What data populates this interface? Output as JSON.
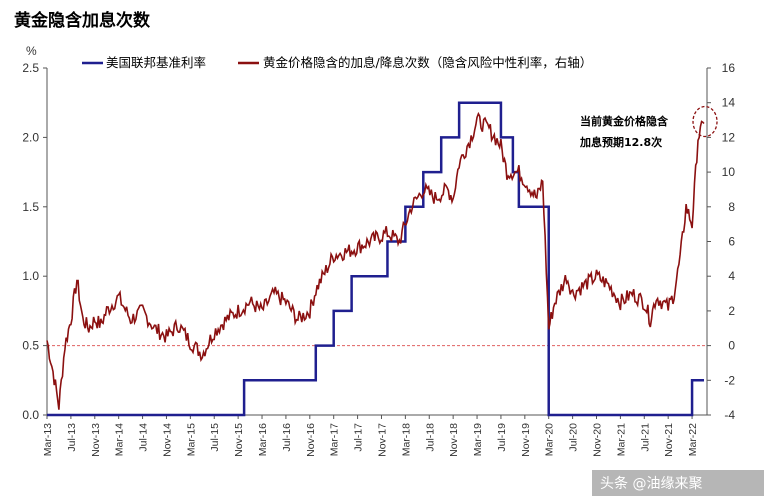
{
  "title": "黄金隐含加息次数",
  "watermark": "头条 @油缘来聚",
  "colors": {
    "fed_rate": "#1f1f8f",
    "gold_hikes": "#8b1010",
    "zero_line": "#e06060"
  },
  "chart_data": {
    "type": "line",
    "x": [
      "Mar-13",
      "Jul-13",
      "Nov-13",
      "Mar-14",
      "Jul-14",
      "Nov-14",
      "Mar-15",
      "Jul-15",
      "Nov-15",
      "Mar-16",
      "Jul-16",
      "Nov-16",
      "Mar-17",
      "Jul-17",
      "Nov-17",
      "Mar-18",
      "Jul-18",
      "Nov-18",
      "Mar-19",
      "Jul-19",
      "Nov-19",
      "Mar-20",
      "Jul-20",
      "Nov-20",
      "Mar-21",
      "Jul-21",
      "Nov-21",
      "Mar-22"
    ],
    "y_left": {
      "unit": "%",
      "ylim": [
        0,
        2.5
      ],
      "ticks": [
        "0.0",
        "0.5",
        "1.0",
        "1.5",
        "2.0",
        "2.5"
      ]
    },
    "y_right": {
      "ylim": [
        -4,
        16
      ],
      "ticks": [
        "-4",
        "-2",
        "0",
        "2",
        "4",
        "6",
        "8",
        "10",
        "12",
        "14",
        "16"
      ]
    },
    "zero_line_right": 0,
    "series": [
      {
        "name": "美国联邦基准利率",
        "axis": "left",
        "step": true,
        "points": [
          [
            "2013-03",
            0.0
          ],
          [
            "2015-12",
            0.25
          ],
          [
            "2016-12",
            0.5
          ],
          [
            "2017-03",
            0.75
          ],
          [
            "2017-06",
            1.0
          ],
          [
            "2017-12",
            1.25
          ],
          [
            "2018-03",
            1.5
          ],
          [
            "2018-06",
            1.75
          ],
          [
            "2018-09",
            2.0
          ],
          [
            "2018-12",
            2.25
          ],
          [
            "2019-07",
            2.0
          ],
          [
            "2019-09",
            1.75
          ],
          [
            "2019-10",
            1.5
          ],
          [
            "2020-03",
            0.0
          ],
          [
            "2022-03",
            0.25
          ],
          [
            "2022-05",
            0.25
          ]
        ]
      },
      {
        "name": "黄金价格隐含的加息/降息次数（隐含风险中性利率，右轴）",
        "axis": "right",
        "points": [
          [
            "2013-03",
            0.3
          ],
          [
            "2013-04",
            -1.5
          ],
          [
            "2013-05",
            -3.5
          ],
          [
            "2013-06",
            0.0
          ],
          [
            "2013-07",
            1.5
          ],
          [
            "2013-08",
            3.8
          ],
          [
            "2013-09",
            1.5
          ],
          [
            "2013-10",
            1.0
          ],
          [
            "2013-11",
            1.5
          ],
          [
            "2013-12",
            1.2
          ],
          [
            "2014-01",
            2.0
          ],
          [
            "2014-03",
            2.8
          ],
          [
            "2014-05",
            1.5
          ],
          [
            "2014-07",
            2.0
          ],
          [
            "2014-09",
            1.0
          ],
          [
            "2014-11",
            0.5
          ],
          [
            "2015-01",
            1.2
          ],
          [
            "2015-03",
            0.2
          ],
          [
            "2015-05",
            -0.5
          ],
          [
            "2015-07",
            0.8
          ],
          [
            "2015-09",
            1.5
          ],
          [
            "2015-11",
            2.0
          ],
          [
            "2016-01",
            2.5
          ],
          [
            "2016-03",
            2.0
          ],
          [
            "2016-05",
            3.0
          ],
          [
            "2016-07",
            2.5
          ],
          [
            "2016-09",
            1.5
          ],
          [
            "2016-11",
            2.0
          ],
          [
            "2016-12",
            3.2
          ],
          [
            "2017-03",
            5.2
          ],
          [
            "2017-06",
            5.5
          ],
          [
            "2017-09",
            6.0
          ],
          [
            "2017-12",
            6.5
          ],
          [
            "2018-02",
            6.0
          ],
          [
            "2018-04",
            8.0
          ],
          [
            "2018-06",
            9.0
          ],
          [
            "2018-08",
            8.5
          ],
          [
            "2018-10",
            9.0
          ],
          [
            "2018-11",
            8.5
          ],
          [
            "2018-12",
            10.5
          ],
          [
            "2019-02",
            12.0
          ],
          [
            "2019-03",
            13.0
          ],
          [
            "2019-05",
            12.5
          ],
          [
            "2019-07",
            11.5
          ],
          [
            "2019-08",
            10.0
          ],
          [
            "2019-10",
            10.0
          ],
          [
            "2019-12",
            9.0
          ],
          [
            "2020-01",
            8.5
          ],
          [
            "2020-02",
            9.5
          ],
          [
            "2020-03",
            1.0
          ],
          [
            "2020-04",
            2.5
          ],
          [
            "2020-06",
            4.0
          ],
          [
            "2020-07",
            3.0
          ],
          [
            "2020-09",
            3.5
          ],
          [
            "2020-11",
            4.0
          ],
          [
            "2021-01",
            3.5
          ],
          [
            "2021-03",
            2.5
          ],
          [
            "2021-05",
            3.0
          ],
          [
            "2021-07",
            2.5
          ],
          [
            "2021-08",
            1.5
          ],
          [
            "2021-09",
            2.8
          ],
          [
            "2021-11",
            2.2
          ],
          [
            "2021-12",
            3.0
          ],
          [
            "2022-01",
            5.0
          ],
          [
            "2022-02",
            8.0
          ],
          [
            "2022-03",
            7.0
          ],
          [
            "2022-04",
            12.0
          ],
          [
            "2022-05",
            12.8
          ]
        ]
      }
    ],
    "annotation": {
      "line1": "当前黄金价格隐含",
      "line2": "加息预期12.8次"
    }
  }
}
